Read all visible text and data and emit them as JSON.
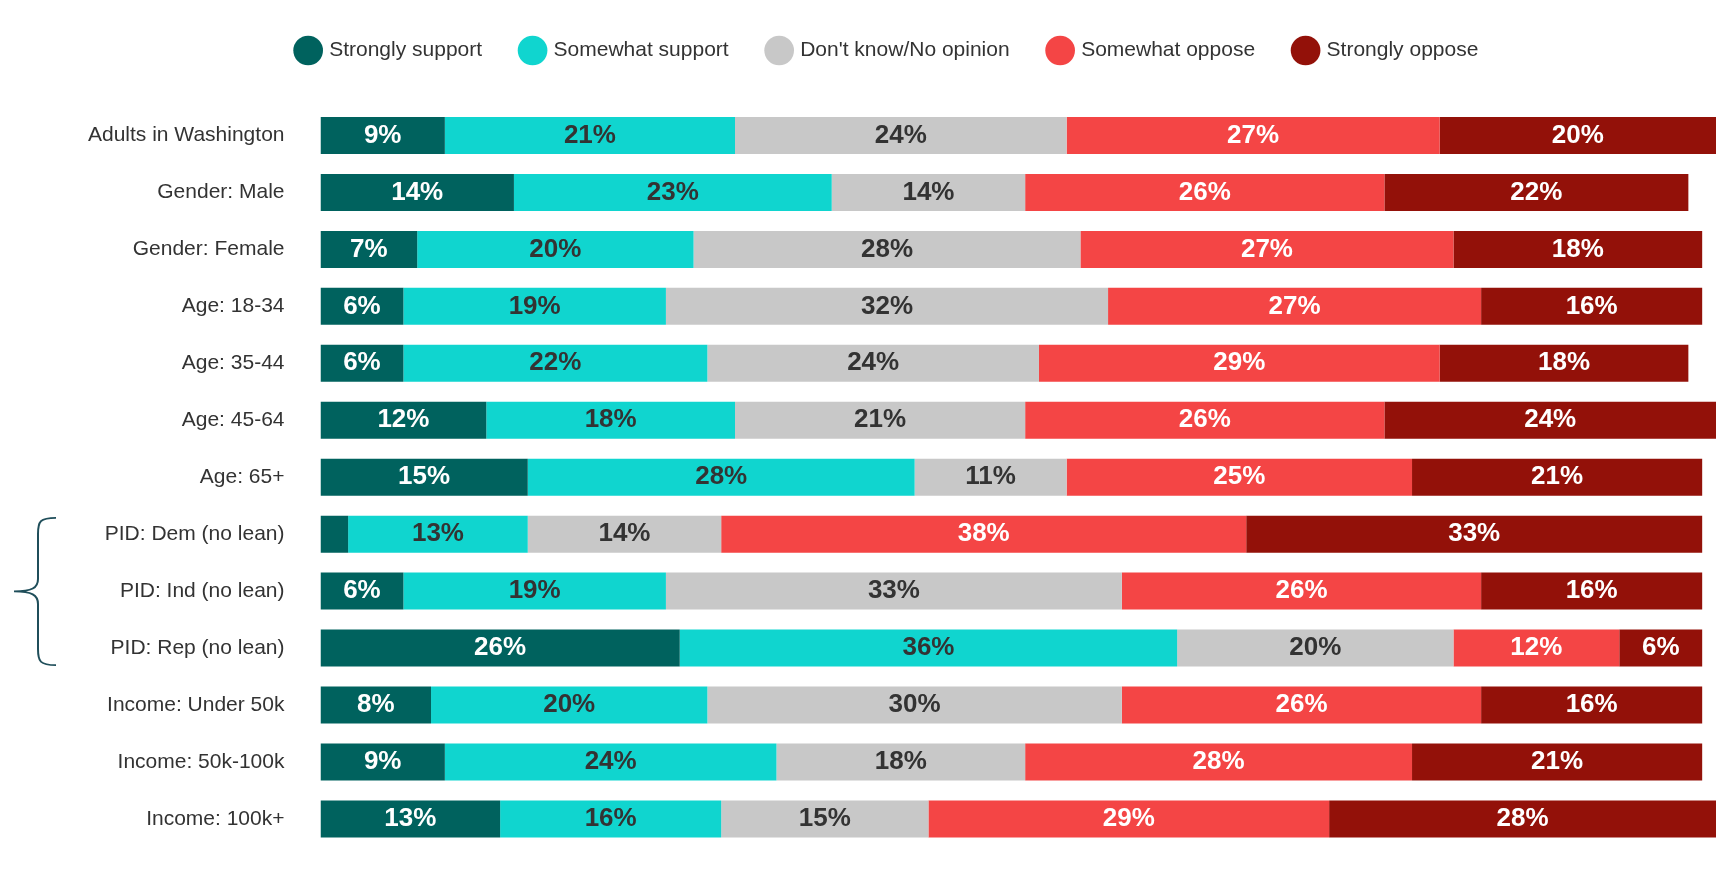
{
  "chart_data": {
    "type": "bar",
    "orientation": "horizontal",
    "stacked": true,
    "legend": "top",
    "categories": [
      "Adults in Washington",
      "Gender: Male",
      "Gender: Female",
      "Age: 18-34",
      "Age: 35-44",
      "Age: 45-64",
      "Age: 65+",
      "PID: Dem (no lean)",
      "PID: Ind (no lean)",
      "PID: Rep (no lean)",
      "Income: Under 50k",
      "Income: 50k-100k",
      "Income: 100k+"
    ],
    "series": [
      {
        "name": "Strongly support",
        "color": "#00625e",
        "values": [
          9,
          14,
          7,
          6,
          6,
          12,
          15,
          2,
          6,
          26,
          8,
          9,
          13
        ],
        "value_labels": [
          "9%",
          "14%",
          "7%",
          "6%",
          "6%",
          "12%",
          "15%",
          null,
          "6%",
          "26%",
          "8%",
          "9%",
          "13%"
        ]
      },
      {
        "name": "Somewhat support",
        "color": "#10d5cf",
        "values": [
          21,
          23,
          20,
          19,
          22,
          18,
          28,
          13,
          19,
          36,
          20,
          24,
          16
        ],
        "value_labels": [
          "21%",
          "23%",
          "20%",
          "19%",
          "22%",
          "18%",
          "28%",
          "13%",
          "19%",
          "36%",
          "20%",
          "24%",
          "16%"
        ]
      },
      {
        "name": "Don't know/No opinion",
        "color": "#c8c8c8",
        "values": [
          24,
          14,
          28,
          32,
          24,
          21,
          11,
          14,
          33,
          20,
          30,
          18,
          15
        ],
        "value_labels": [
          "24%",
          "14%",
          "28%",
          "32%",
          "24%",
          "21%",
          "11%",
          "14%",
          "33%",
          "20%",
          "30%",
          "18%",
          "15%"
        ]
      },
      {
        "name": "Somewhat oppose",
        "color": "#f44545",
        "values": [
          27,
          26,
          27,
          27,
          29,
          26,
          25,
          38,
          26,
          12,
          26,
          28,
          29
        ],
        "value_labels": [
          "27%",
          "26%",
          "27%",
          "27%",
          "29%",
          "26%",
          "25%",
          "38%",
          "26%",
          "12%",
          "26%",
          "28%",
          "29%"
        ]
      },
      {
        "name": "Strongly oppose",
        "color": "#931109",
        "values": [
          20,
          22,
          18,
          16,
          18,
          24,
          21,
          33,
          16,
          6,
          16,
          21,
          28
        ],
        "value_labels": [
          "20%",
          "22%",
          "18%",
          "16%",
          "18%",
          "24%",
          "21%",
          "33%",
          "16%",
          "6%",
          "16%",
          "21%",
          "28%"
        ]
      }
    ]
  }
}
